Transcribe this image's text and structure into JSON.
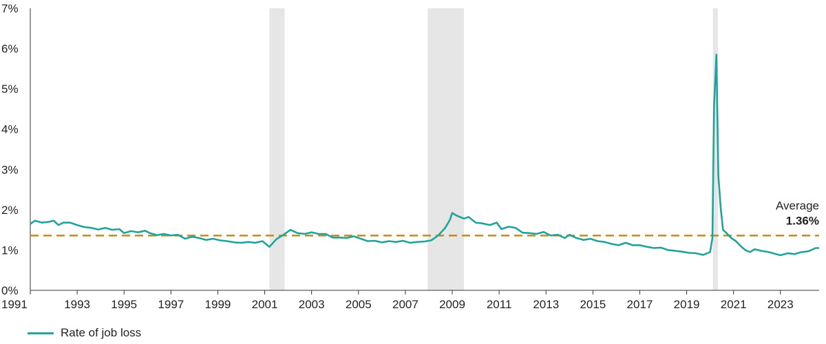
{
  "chart_data": {
    "type": "line",
    "title": "",
    "xlabel": "",
    "ylabel": "",
    "x_range": [
      1991.0,
      2024.65
    ],
    "y_range": [
      0,
      7
    ],
    "y_ticks": [
      0,
      1,
      2,
      3,
      4,
      5,
      6,
      7
    ],
    "y_tick_labels": [
      "0%",
      "1%",
      "2%",
      "3%",
      "4%",
      "5%",
      "6%",
      "7%"
    ],
    "x_ticks": [
      1991,
      1993,
      1995,
      1997,
      1999,
      2001,
      2003,
      2005,
      2007,
      2009,
      2011,
      2013,
      2015,
      2017,
      2019,
      2021,
      2023
    ],
    "x_tick_labels": [
      "1991",
      "1993",
      "1995",
      "1997",
      "1999",
      "2001",
      "2003",
      "2005",
      "2007",
      "2009",
      "2011",
      "2013",
      "2015",
      "2017",
      "2019",
      "2021",
      "2023"
    ],
    "recessions": [
      {
        "start": 2001.2,
        "end": 2001.85
      },
      {
        "start": 2007.95,
        "end": 2009.5
      },
      {
        "start": 2020.12,
        "end": 2020.33
      }
    ],
    "average": {
      "label": "Average",
      "value": 1.36,
      "value_label": "1.36%"
    },
    "series": [
      {
        "name": "Rate of job loss",
        "color": "#1fa39a",
        "points": [
          [
            1991.0,
            1.65
          ],
          [
            1991.2,
            1.73
          ],
          [
            1991.5,
            1.68
          ],
          [
            1991.8,
            1.7
          ],
          [
            1992.0,
            1.73
          ],
          [
            1992.2,
            1.62
          ],
          [
            1992.4,
            1.68
          ],
          [
            1992.7,
            1.68
          ],
          [
            1993.0,
            1.62
          ],
          [
            1993.3,
            1.57
          ],
          [
            1993.6,
            1.55
          ],
          [
            1993.9,
            1.51
          ],
          [
            1994.2,
            1.55
          ],
          [
            1994.5,
            1.5
          ],
          [
            1994.8,
            1.52
          ],
          [
            1995.0,
            1.42
          ],
          [
            1995.3,
            1.47
          ],
          [
            1995.6,
            1.44
          ],
          [
            1995.9,
            1.48
          ],
          [
            1996.1,
            1.42
          ],
          [
            1996.4,
            1.37
          ],
          [
            1996.7,
            1.4
          ],
          [
            1997.0,
            1.36
          ],
          [
            1997.3,
            1.38
          ],
          [
            1997.6,
            1.28
          ],
          [
            1997.9,
            1.33
          ],
          [
            1998.2,
            1.3
          ],
          [
            1998.5,
            1.25
          ],
          [
            1998.8,
            1.28
          ],
          [
            1999.1,
            1.24
          ],
          [
            1999.4,
            1.22
          ],
          [
            1999.7,
            1.19
          ],
          [
            2000.0,
            1.18
          ],
          [
            2000.3,
            1.2
          ],
          [
            2000.6,
            1.18
          ],
          [
            2000.9,
            1.22
          ],
          [
            2001.2,
            1.08
          ],
          [
            2001.5,
            1.27
          ],
          [
            2001.8,
            1.38
          ],
          [
            2002.1,
            1.5
          ],
          [
            2002.4,
            1.42
          ],
          [
            2002.7,
            1.4
          ],
          [
            2003.0,
            1.44
          ],
          [
            2003.3,
            1.4
          ],
          [
            2003.6,
            1.4
          ],
          [
            2003.9,
            1.31
          ],
          [
            2004.2,
            1.31
          ],
          [
            2004.5,
            1.3
          ],
          [
            2004.8,
            1.34
          ],
          [
            2005.1,
            1.28
          ],
          [
            2005.4,
            1.22
          ],
          [
            2005.7,
            1.23
          ],
          [
            2006.0,
            1.19
          ],
          [
            2006.3,
            1.22
          ],
          [
            2006.6,
            1.2
          ],
          [
            2006.9,
            1.23
          ],
          [
            2007.2,
            1.18
          ],
          [
            2007.5,
            1.2
          ],
          [
            2007.8,
            1.21
          ],
          [
            2008.1,
            1.24
          ],
          [
            2008.4,
            1.36
          ],
          [
            2008.7,
            1.55
          ],
          [
            2008.9,
            1.75
          ],
          [
            2009.0,
            1.92
          ],
          [
            2009.2,
            1.85
          ],
          [
            2009.5,
            1.78
          ],
          [
            2009.7,
            1.82
          ],
          [
            2010.0,
            1.68
          ],
          [
            2010.3,
            1.66
          ],
          [
            2010.6,
            1.62
          ],
          [
            2010.9,
            1.68
          ],
          [
            2011.1,
            1.52
          ],
          [
            2011.4,
            1.58
          ],
          [
            2011.7,
            1.55
          ],
          [
            2012.0,
            1.43
          ],
          [
            2012.3,
            1.42
          ],
          [
            2012.6,
            1.4
          ],
          [
            2012.9,
            1.45
          ],
          [
            2013.2,
            1.36
          ],
          [
            2013.5,
            1.38
          ],
          [
            2013.8,
            1.3
          ],
          [
            2014.0,
            1.38
          ],
          [
            2014.3,
            1.3
          ],
          [
            2014.6,
            1.25
          ],
          [
            2014.9,
            1.28
          ],
          [
            2015.2,
            1.22
          ],
          [
            2015.5,
            1.2
          ],
          [
            2015.8,
            1.15
          ],
          [
            2016.1,
            1.12
          ],
          [
            2016.4,
            1.18
          ],
          [
            2016.7,
            1.12
          ],
          [
            2017.0,
            1.12
          ],
          [
            2017.3,
            1.08
          ],
          [
            2017.6,
            1.05
          ],
          [
            2017.9,
            1.06
          ],
          [
            2018.2,
            1.0
          ],
          [
            2018.5,
            0.98
          ],
          [
            2018.8,
            0.96
          ],
          [
            2019.1,
            0.93
          ],
          [
            2019.4,
            0.92
          ],
          [
            2019.7,
            0.88
          ],
          [
            2020.0,
            0.95
          ],
          [
            2020.1,
            1.3
          ],
          [
            2020.17,
            4.6
          ],
          [
            2020.27,
            5.85
          ],
          [
            2020.35,
            2.85
          ],
          [
            2020.45,
            2.05
          ],
          [
            2020.55,
            1.5
          ],
          [
            2020.7,
            1.42
          ],
          [
            2020.9,
            1.3
          ],
          [
            2021.1,
            1.22
          ],
          [
            2021.3,
            1.1
          ],
          [
            2021.5,
            1.0
          ],
          [
            2021.7,
            0.95
          ],
          [
            2021.9,
            1.02
          ],
          [
            2022.2,
            0.98
          ],
          [
            2022.5,
            0.95
          ],
          [
            2022.8,
            0.9
          ],
          [
            2023.0,
            0.87
          ],
          [
            2023.3,
            0.92
          ],
          [
            2023.6,
            0.9
          ],
          [
            2023.9,
            0.95
          ],
          [
            2024.2,
            0.97
          ],
          [
            2024.5,
            1.05
          ],
          [
            2024.65,
            1.05
          ]
        ]
      }
    ]
  }
}
